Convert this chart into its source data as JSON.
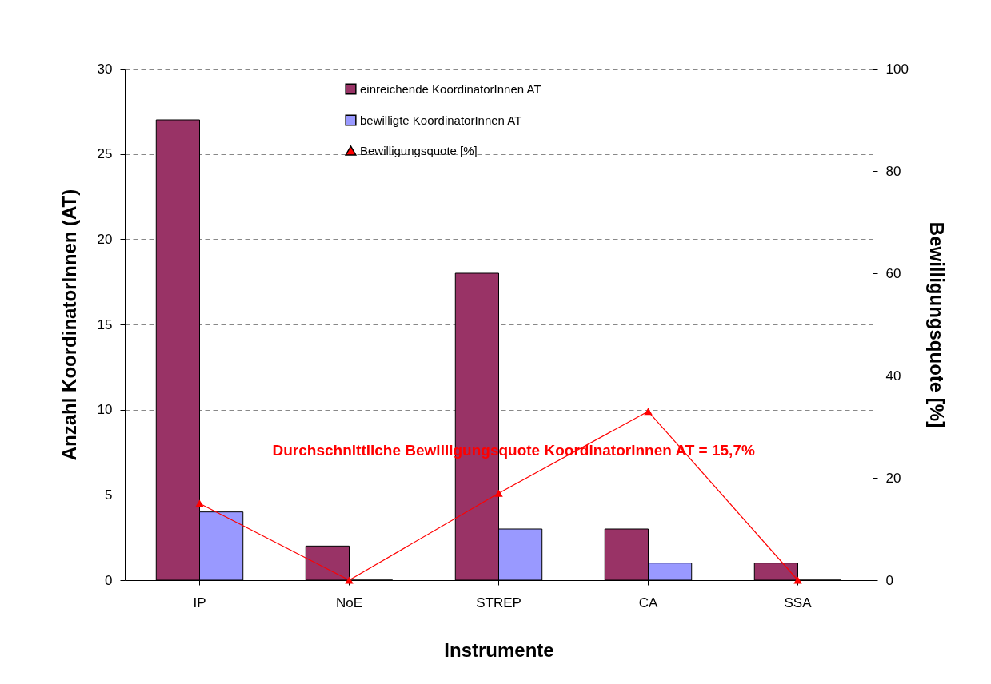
{
  "chart_data": {
    "type": "bar",
    "categories": [
      "IP",
      "NoE",
      "STREP",
      "CA",
      "SSA"
    ],
    "series": [
      {
        "name": "einreichende KoordinatorInnen AT",
        "color": "#993366",
        "values": [
          27,
          2,
          18,
          3,
          1
        ]
      },
      {
        "name": "bewilligte KoordinatorInnen AT",
        "color": "#9999ff",
        "values": [
          4,
          0,
          3,
          1,
          0
        ]
      },
      {
        "name": "Bewilligungsquote [%]",
        "type": "line",
        "axis": "y2",
        "color": "#ff0000",
        "marker": "triangle",
        "values": [
          15,
          0,
          17,
          33,
          0
        ]
      }
    ],
    "xlabel": "Instrumente",
    "ylabel": "Anzahl KoordinatorInnen (AT)",
    "y2label": "Bewilligungsquote [%]",
    "ylim": [
      0,
      30
    ],
    "yticks": [
      0,
      5,
      10,
      15,
      20,
      25,
      30
    ],
    "y2lim": [
      0,
      100
    ],
    "y2ticks": [
      0,
      20,
      40,
      60,
      80,
      100
    ],
    "grid": "y",
    "legend": "top",
    "annotations": [
      "Durchschnittliche Bewilligungsquote KoordinatorInnen AT = 15,7%"
    ]
  }
}
